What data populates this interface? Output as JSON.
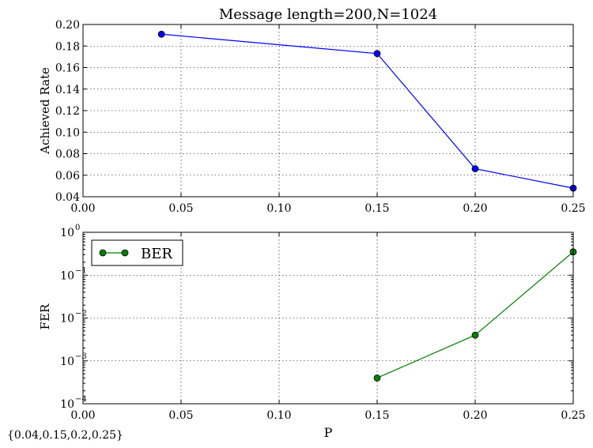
{
  "figure_footnote": "{0.04,0.15,0.2,0.25}",
  "chart_data": [
    {
      "type": "line",
      "title": "Message length=200,N=1024",
      "xlabel": "",
      "ylabel": "Achieved Rate",
      "xlim": [
        0.0,
        0.25
      ],
      "ylim": [
        0.04,
        0.2
      ],
      "xticks": [
        "0.00",
        "0.05",
        "0.10",
        "0.15",
        "0.20",
        "0.25"
      ],
      "yticks": [
        "0.04",
        "0.06",
        "0.08",
        "0.10",
        "0.12",
        "0.14",
        "0.16",
        "0.18",
        "0.20"
      ],
      "grid": true,
      "series": [
        {
          "color": "#0000ff",
          "marker": "circle",
          "x": [
            0.04,
            0.15,
            0.2,
            0.25
          ],
          "y": [
            0.191,
            0.173,
            0.066,
            0.048
          ]
        }
      ]
    },
    {
      "type": "line",
      "title": "",
      "xlabel": "P",
      "ylabel": "FER",
      "xlim": [
        0.0,
        0.25
      ],
      "ylim": [
        0.0001,
        1
      ],
      "yscale": "log",
      "xticks": [
        "0.00",
        "0.05",
        "0.10",
        "0.15",
        "0.20",
        "0.25"
      ],
      "yticks": [
        {
          "base": "10",
          "exp": "0"
        },
        {
          "base": "10",
          "exp": "−1"
        },
        {
          "base": "10",
          "exp": "−2"
        },
        {
          "base": "10",
          "exp": "−3"
        },
        {
          "base": "10",
          "exp": "−4"
        }
      ],
      "grid": true,
      "legend": "top-left",
      "series": [
        {
          "name": "BER",
          "color": "#008000",
          "marker": "circle",
          "x": [
            0.15,
            0.2,
            0.25
          ],
          "y": [
            0.0004,
            0.004,
            0.35
          ]
        }
      ]
    }
  ]
}
